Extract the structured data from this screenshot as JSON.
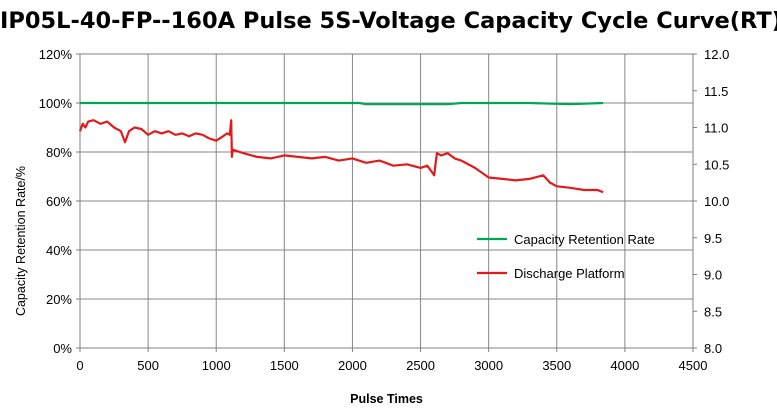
{
  "chart_data": {
    "type": "line",
    "title": "IP05L-40-FP--160A Pulse 5S-Voltage Capacity Cycle Curve(RT)",
    "xlabel": "Pulse Times",
    "ylabel": "Capacity Retention Rate/%",
    "y2label": "",
    "xlim": [
      0,
      4500
    ],
    "ylim": [
      0,
      1.2
    ],
    "y2lim": [
      8.0,
      12.0
    ],
    "xticks": [
      "0",
      "500",
      "1000",
      "1500",
      "2000",
      "2500",
      "3000",
      "3500",
      "4000",
      "4500"
    ],
    "yticks": [
      "0%",
      "20%",
      "40%",
      "60%",
      "80%",
      "100%",
      "120%"
    ],
    "y2ticks": [
      "8.0",
      "8.5",
      "9.0",
      "9.5",
      "10.0",
      "10.5",
      "11.0",
      "11.5",
      "12.0"
    ],
    "grid": true,
    "legend_position": "bottom-right",
    "series": [
      {
        "name": "Capacity Retention Rate",
        "axis": "left",
        "color": "#00a651",
        "x": [
          0,
          200,
          500,
          800,
          1000,
          1300,
          1600,
          1900,
          2050,
          2100,
          2400,
          2700,
          2800,
          3000,
          3300,
          3600,
          3840
        ],
        "y": [
          1.0,
          1.0,
          1.0,
          1.0,
          1.0,
          1.0,
          1.0,
          1.0,
          1.0,
          0.995,
          0.995,
          0.995,
          1.0,
          1.0,
          1.0,
          0.995,
          1.0
        ]
      },
      {
        "name": "Discharge Platform",
        "axis": "right",
        "color": "#e31a1c",
        "x": [
          0,
          20,
          40,
          60,
          100,
          150,
          200,
          250,
          300,
          330,
          360,
          400,
          450,
          500,
          550,
          600,
          650,
          700,
          750,
          800,
          850,
          900,
          950,
          1000,
          1050,
          1080,
          1100,
          1110,
          1115,
          1120,
          1150,
          1200,
          1300,
          1400,
          1500,
          1600,
          1700,
          1800,
          1900,
          2000,
          2100,
          2200,
          2300,
          2400,
          2500,
          2550,
          2600,
          2610,
          2620,
          2650,
          2700,
          2750,
          2800,
          2900,
          3000,
          3100,
          3200,
          3300,
          3400,
          3450,
          3500,
          3600,
          3700,
          3800,
          3840
        ],
        "y": [
          10.95,
          11.05,
          11.0,
          11.08,
          11.1,
          11.05,
          11.08,
          11.0,
          10.95,
          10.8,
          10.95,
          11.0,
          10.98,
          10.9,
          10.95,
          10.92,
          10.95,
          10.9,
          10.92,
          10.88,
          10.92,
          10.9,
          10.85,
          10.82,
          10.88,
          10.92,
          10.9,
          11.1,
          10.6,
          10.7,
          10.68,
          10.65,
          10.6,
          10.58,
          10.62,
          10.6,
          10.58,
          10.6,
          10.55,
          10.58,
          10.52,
          10.55,
          10.48,
          10.5,
          10.45,
          10.48,
          10.35,
          10.5,
          10.65,
          10.62,
          10.65,
          10.58,
          10.55,
          10.45,
          10.32,
          10.3,
          10.28,
          10.3,
          10.35,
          10.25,
          10.2,
          10.18,
          10.15,
          10.15,
          10.12
        ]
      }
    ]
  }
}
